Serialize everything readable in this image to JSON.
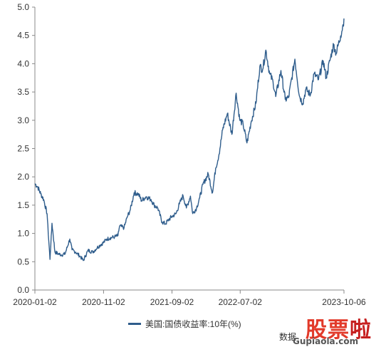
{
  "chart_data": {
    "type": "line",
    "title": "",
    "xlabel": "",
    "ylabel": "",
    "x_ticks": [
      "2020-01-02",
      "2020-11-02",
      "2021-09-02",
      "2022-07-02",
      "2023-10-06"
    ],
    "y_ticks": [
      "0.0",
      "0.5",
      "1.0",
      "1.5",
      "2.0",
      "2.5",
      "3.0",
      "3.5",
      "4.0",
      "4.5",
      "5.0"
    ],
    "ylim": [
      0,
      5
    ],
    "xlim": [
      "2020-01-02",
      "2023-10-06"
    ],
    "grid": false,
    "legend_position": "bottom",
    "series": [
      {
        "name": "美国:国债收益率:10年(%)",
        "color": "#2f5d8c",
        "points": [
          [
            "2020-01-02",
            1.88
          ],
          [
            "2020-01-15",
            1.82
          ],
          [
            "2020-01-28",
            1.7
          ],
          [
            "2020-02-10",
            1.6
          ],
          [
            "2020-02-25",
            1.35
          ],
          [
            "2020-03-09",
            0.54
          ],
          [
            "2020-03-18",
            1.18
          ],
          [
            "2020-03-31",
            0.67
          ],
          [
            "2020-04-15",
            0.64
          ],
          [
            "2020-04-30",
            0.62
          ],
          [
            "2020-05-15",
            0.64
          ],
          [
            "2020-06-05",
            0.9
          ],
          [
            "2020-06-15",
            0.71
          ],
          [
            "2020-07-01",
            0.67
          ],
          [
            "2020-07-20",
            0.6
          ],
          [
            "2020-08-04",
            0.52
          ],
          [
            "2020-08-25",
            0.7
          ],
          [
            "2020-09-15",
            0.67
          ],
          [
            "2020-10-05",
            0.75
          ],
          [
            "2020-10-20",
            0.8
          ],
          [
            "2020-11-02",
            0.84
          ],
          [
            "2020-11-16",
            0.9
          ],
          [
            "2020-12-01",
            0.92
          ],
          [
            "2020-12-21",
            0.94
          ],
          [
            "2021-01-05",
            0.96
          ],
          [
            "2021-01-12",
            1.13
          ],
          [
            "2021-02-01",
            1.1
          ],
          [
            "2021-02-16",
            1.3
          ],
          [
            "2021-03-01",
            1.42
          ],
          [
            "2021-03-18",
            1.72
          ],
          [
            "2021-04-05",
            1.7
          ],
          [
            "2021-04-20",
            1.58
          ],
          [
            "2021-05-10",
            1.65
          ],
          [
            "2021-06-01",
            1.6
          ],
          [
            "2021-06-15",
            1.5
          ],
          [
            "2021-07-01",
            1.45
          ],
          [
            "2021-07-20",
            1.2
          ],
          [
            "2021-08-04",
            1.17
          ],
          [
            "2021-08-20",
            1.25
          ],
          [
            "2021-09-02",
            1.3
          ],
          [
            "2021-09-20",
            1.35
          ],
          [
            "2021-10-05",
            1.52
          ],
          [
            "2021-10-21",
            1.67
          ],
          [
            "2021-11-05",
            1.45
          ],
          [
            "2021-11-23",
            1.66
          ],
          [
            "2021-12-03",
            1.35
          ],
          [
            "2021-12-20",
            1.45
          ],
          [
            "2022-01-03",
            1.63
          ],
          [
            "2022-01-18",
            1.87
          ],
          [
            "2022-02-10",
            2.05
          ],
          [
            "2022-03-01",
            1.72
          ],
          [
            "2022-03-15",
            2.15
          ],
          [
            "2022-03-30",
            2.4
          ],
          [
            "2022-04-15",
            2.83
          ],
          [
            "2022-05-06",
            3.12
          ],
          [
            "2022-05-26",
            2.75
          ],
          [
            "2022-06-14",
            3.48
          ],
          [
            "2022-06-30",
            3.01
          ],
          [
            "2022-07-15",
            2.93
          ],
          [
            "2022-08-01",
            2.6
          ],
          [
            "2022-08-20",
            2.98
          ],
          [
            "2022-09-10",
            3.3
          ],
          [
            "2022-09-27",
            3.95
          ],
          [
            "2022-10-10",
            3.9
          ],
          [
            "2022-10-24",
            4.24
          ],
          [
            "2022-11-10",
            3.82
          ],
          [
            "2022-11-25",
            3.68
          ],
          [
            "2022-12-07",
            3.42
          ],
          [
            "2022-12-30",
            3.88
          ],
          [
            "2023-01-18",
            3.37
          ],
          [
            "2023-02-02",
            3.4
          ],
          [
            "2023-03-02",
            4.08
          ],
          [
            "2023-03-22",
            3.43
          ],
          [
            "2023-04-06",
            3.3
          ],
          [
            "2023-04-20",
            3.55
          ],
          [
            "2023-05-10",
            3.45
          ],
          [
            "2023-05-26",
            3.82
          ],
          [
            "2023-06-15",
            3.72
          ],
          [
            "2023-07-06",
            4.05
          ],
          [
            "2023-07-19",
            3.75
          ],
          [
            "2023-08-04",
            4.05
          ],
          [
            "2023-08-21",
            4.34
          ],
          [
            "2023-09-01",
            4.18
          ],
          [
            "2023-09-21",
            4.49
          ],
          [
            "2023-10-02",
            4.69
          ],
          [
            "2023-10-06",
            4.8
          ]
        ]
      }
    ]
  },
  "source_text": "数据",
  "watermark": {
    "logo_part1": "股票",
    "logo_part2": "啦",
    "url": "Gupiaola.com"
  }
}
